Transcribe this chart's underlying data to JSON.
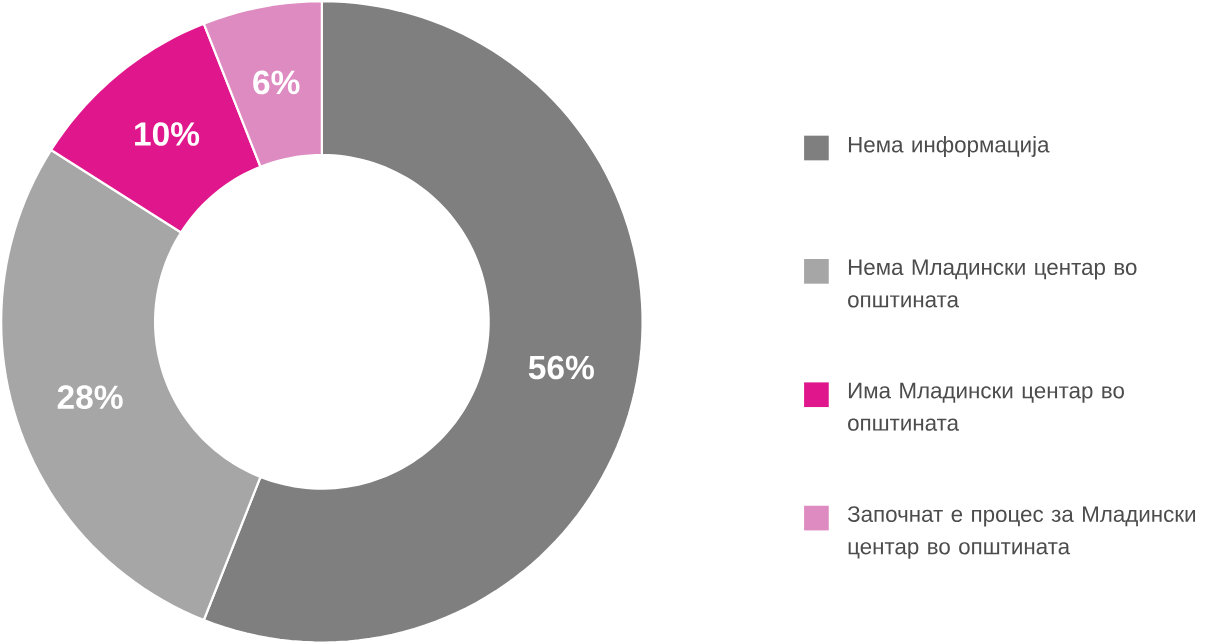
{
  "chart_data": {
    "type": "donut",
    "categories": [
      "Нема информација",
      "Нема Младински центар во општината",
      "Има Младински центар во општината",
      "Започнат е процес за Младински центар во општината"
    ],
    "values": [
      56,
      28,
      10,
      6
    ],
    "value_labels": [
      "56%",
      "28%",
      "10%",
      "6%"
    ],
    "colors": [
      "#7f7f7f",
      "#a6a6a6",
      "#e0178c",
      "#de8bc1"
    ],
    "legend": "right"
  }
}
